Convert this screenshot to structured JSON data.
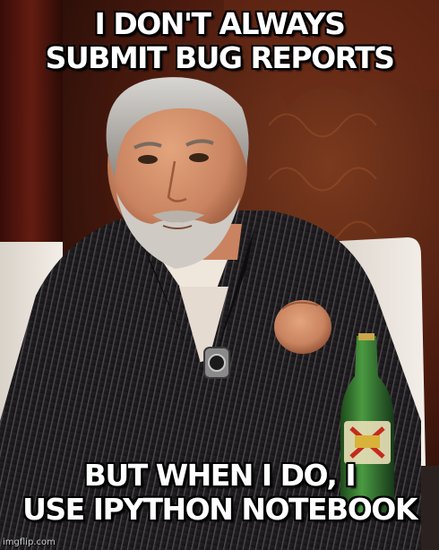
{
  "meme": {
    "top_text": [
      "I DON'T ALWAYS",
      "SUBMIT BUG REPORTS"
    ],
    "bottom_text": [
      "BUT WHEN I DO, I",
      "USE IPYTHON NOTEBOOK"
    ],
    "watermark": "imgflip.com"
  },
  "colors": {
    "caption_fill": "#ffffff",
    "caption_outline": "#000000",
    "background": "#5a2012",
    "suit": "#1c1a1c",
    "shirt": "#efe6dc",
    "bottle": "#2e6e2a"
  },
  "icons": {
    "scene": "man-with-beer-image"
  }
}
